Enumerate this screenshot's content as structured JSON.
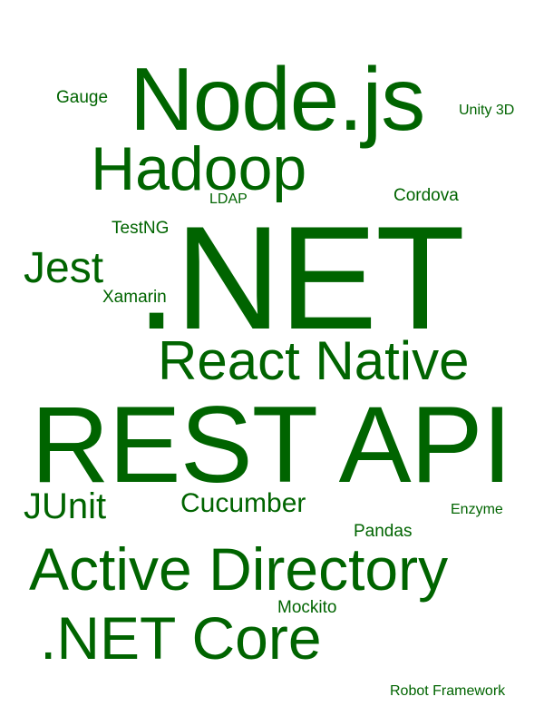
{
  "word_cloud": {
    "color": "#006400",
    "words": {
      "nodejs": "Node.js",
      "gauge": "Gauge",
      "unity3d": "Unity 3D",
      "hadoop": "Hadoop",
      "cordova": "Cordova",
      "ldap": "LDAP",
      "testng": "TestNG",
      "dotnet": ".NET",
      "jest": "Jest",
      "xamarin": "Xamarin",
      "reactnative": "React Native",
      "restapi": "REST API",
      "junit": "JUnit",
      "cucumber": "Cucumber",
      "enzyme": "Enzyme",
      "pandas": "Pandas",
      "activedirectory": "Active Directory",
      "mockito": "Mockito",
      "dotnetcore": ".NET Core",
      "robotframework": "Robot Framework"
    }
  }
}
